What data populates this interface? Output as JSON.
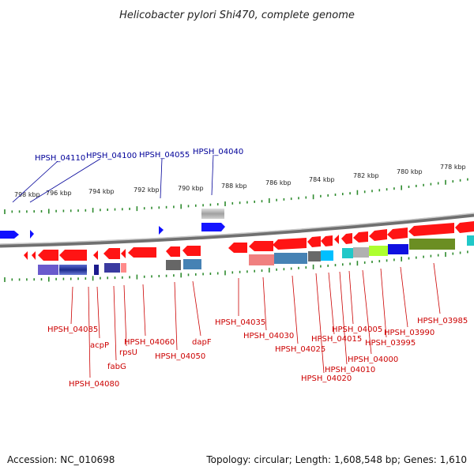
{
  "title": "Helicobacter pylori Shi470, complete genome",
  "footer": {
    "accession": "Accession: NC_010698",
    "topology": "Topology: circular; Length: 1,608,548 bp; Genes: 1,610"
  },
  "colors": {
    "background": "#ffffff",
    "backbone": "#8c8c8c",
    "forward_gene": "#ff0000",
    "reverse_gene": "#0000ff",
    "ruler_ticks": "#2e8b2e",
    "label_forward": "#cc0000",
    "label_reverse": "#000099"
  },
  "ruler": {
    "unit": "kbp",
    "ticks": [
      "798 kbp",
      "796 kbp",
      "794 kbp",
      "792 kbp",
      "790 kbp",
      "788 kbp",
      "786 kbp",
      "784 kbp",
      "782 kbp",
      "780 kbp",
      "778 kbp"
    ]
  },
  "labels_top": [
    "HPSH_04110",
    "HPSH_04100",
    "HPSH_04055",
    "HPSH_04040"
  ],
  "labels_bottom": [
    "HPSH_04085",
    "acpP",
    "HPSH_04080",
    "fabG",
    "rpsU",
    "HPSH_04060",
    "HPSH_04050",
    "dapF",
    "HPSH_04035",
    "HPSH_04030",
    "HPSH_04025",
    "HPSH_04020",
    "HPSH_04015",
    "HPSH_04010",
    "HPSH_04005",
    "HPSH_04000",
    "HPSH_03995",
    "HPSH_03990",
    "HPSH_03985"
  ]
}
